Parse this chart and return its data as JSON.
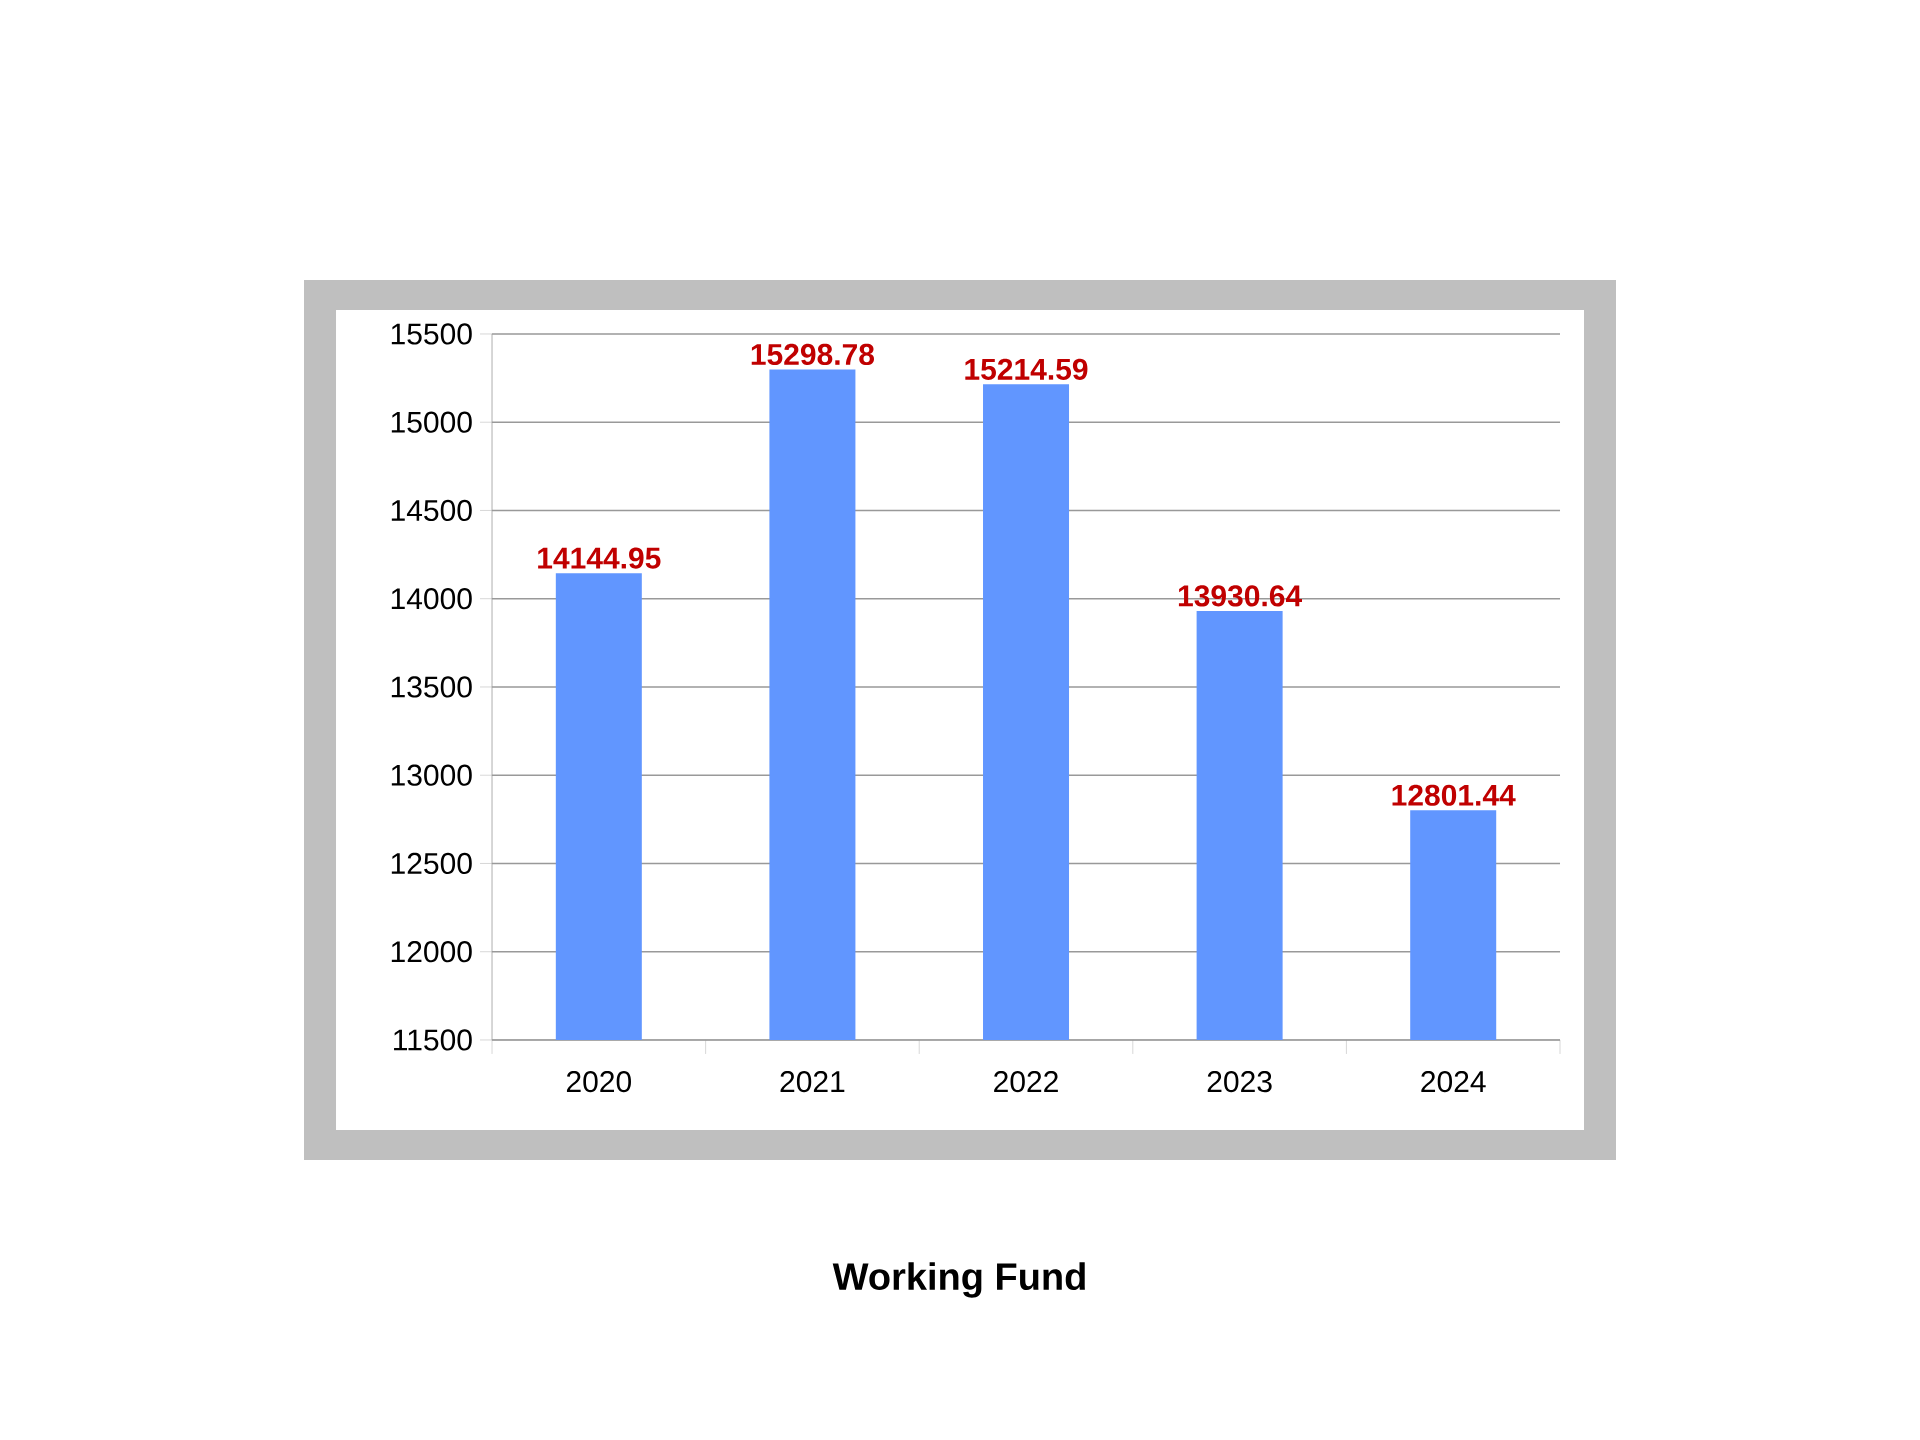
{
  "chart_data": {
    "type": "bar",
    "title": "Working Fund",
    "categories": [
      "2020",
      "2021",
      "2022",
      "2023",
      "2024"
    ],
    "values": [
      14144.95,
      15298.78,
      15214.59,
      13930.64,
      12801.44
    ],
    "color": "#6196ff",
    "ylim": [
      11500,
      15500
    ],
    "yticks": [
      11500,
      12000,
      12500,
      13000,
      13500,
      14000,
      14500,
      15000,
      15500
    ],
    "grid": "y",
    "data_labels": true
  }
}
